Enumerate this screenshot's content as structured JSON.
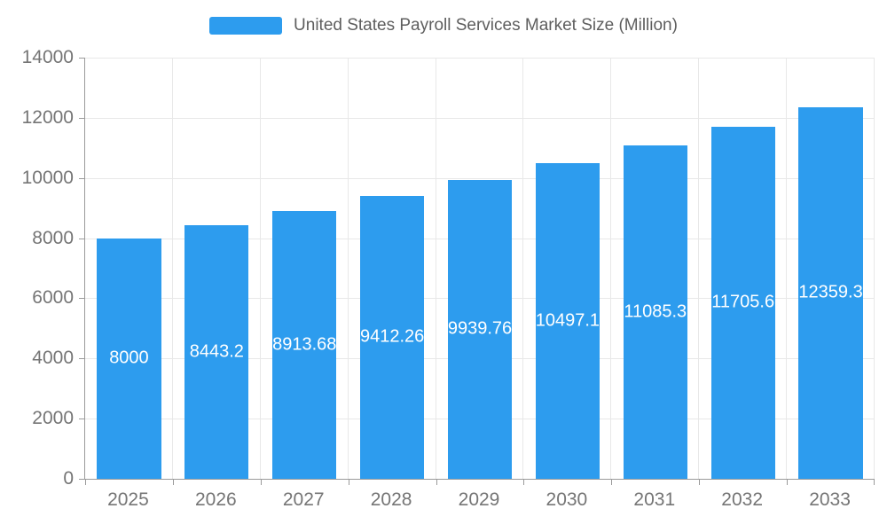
{
  "chart_data": {
    "type": "bar",
    "title": "United States Payroll Services Market Size (Million)",
    "series_name": "United States Payroll Services Market Size (Million)",
    "categories": [
      "2025",
      "2026",
      "2027",
      "2028",
      "2029",
      "2030",
      "2031",
      "2032",
      "2033"
    ],
    "values": [
      8000,
      8443.2,
      8913.68,
      9412.26,
      9939.76,
      10497.1,
      11085.3,
      11705.6,
      12359.3
    ],
    "value_labels": [
      "8000",
      "8443.2",
      "8913.68",
      "9412.26",
      "9939.76",
      "10497.1",
      "11085.3",
      "11705.6",
      "12359.3"
    ],
    "xlabel": "",
    "ylabel": "",
    "ylim": [
      0,
      14000
    ],
    "yticks": [
      0,
      2000,
      4000,
      6000,
      8000,
      10000,
      12000,
      14000
    ],
    "grid": true,
    "legend_position": "top",
    "value_label_position": "inside-middle",
    "colors": {
      "bar": "#2D9CEE",
      "axis_label": "#757575",
      "title": "#5E5E5E",
      "grid_line": "#E8E8E8",
      "axis_line": "#9A9A9A",
      "value_label": "#FFFFFF",
      "background": "#FFFFFF"
    }
  }
}
